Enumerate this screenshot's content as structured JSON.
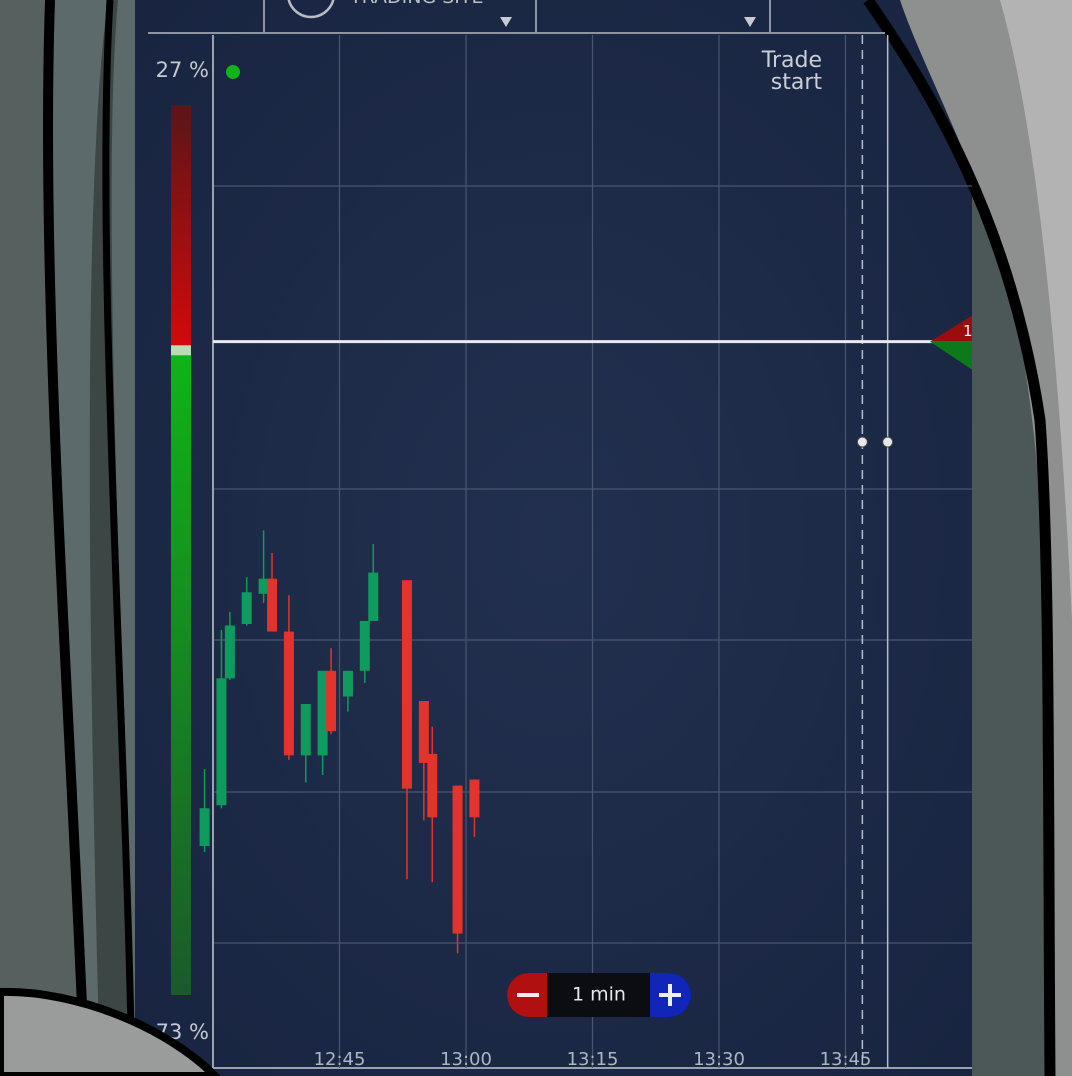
{
  "header": {
    "title": "TRADING SITE"
  },
  "sentiment": {
    "top_label": "27 %",
    "top_value": 27,
    "bottom_label": "73 %",
    "bottom_value": 73
  },
  "chart_data": {
    "type": "candlestick",
    "x": [
      "12:29",
      "12:31",
      "12:32",
      "12:34",
      "12:36",
      "12:37",
      "12:39",
      "12:41",
      "12:43",
      "12:44",
      "12:46",
      "12:48",
      "12:49",
      "12:53",
      "12:55",
      "12:56",
      "12:59",
      "13:01"
    ],
    "open": [
      64,
      91,
      175,
      211,
      231,
      241,
      206,
      124,
      124,
      180,
      163,
      180,
      213,
      240,
      160,
      125,
      104,
      108
    ],
    "high": [
      115,
      207,
      219,
      242,
      273,
      258,
      230,
      158,
      180,
      195,
      180,
      213,
      264,
      240,
      160,
      143,
      104,
      108
    ],
    "low": [
      60,
      89,
      174,
      210,
      225,
      206,
      121,
      106,
      111,
      138,
      153,
      172,
      213,
      42,
      81,
      40,
      -7,
      70
    ],
    "close": [
      89,
      175,
      210,
      232,
      241,
      206,
      124,
      158,
      180,
      140,
      180,
      213,
      245,
      102,
      119,
      83,
      6,
      83
    ],
    "up_color": "#0f9b5e",
    "down_color": "#e2342c",
    "xlim": [
      "12:30",
      "14:00"
    ],
    "ylim": [
      -83,
      601
    ],
    "xticks": [
      "12:45",
      "13:00",
      "13:15",
      "13:30",
      "13:45"
    ],
    "grid": true,
    "price_level": 398,
    "trade_start": "13:47",
    "expiry": "13:50",
    "annotation": "Trade start"
  },
  "controls": {
    "duration": "1 min"
  },
  "marker": {
    "label": "1"
  }
}
